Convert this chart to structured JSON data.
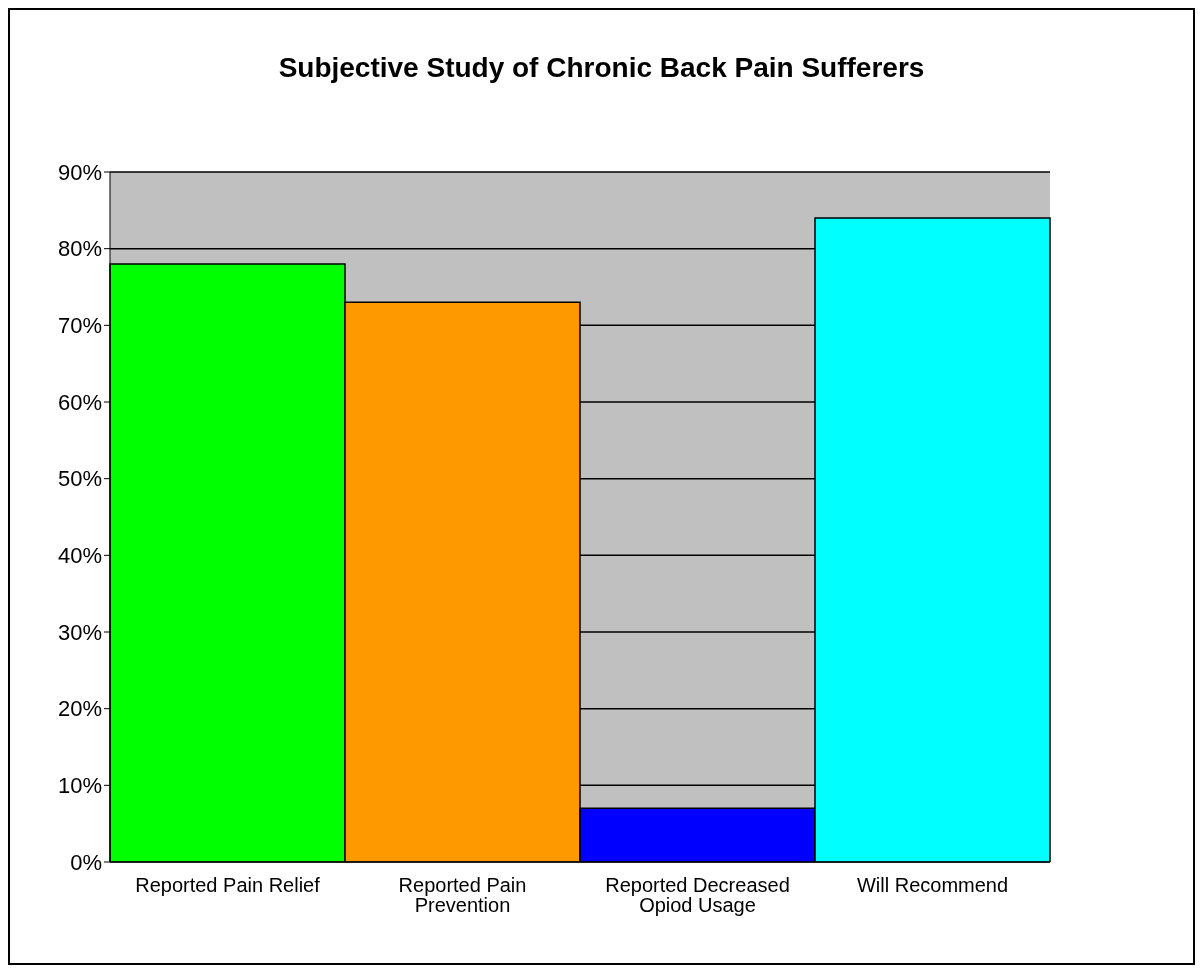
{
  "chart_data": {
    "type": "bar",
    "title": "Subjective Study of Chronic Back Pain Sufferers",
    "categories": [
      "Reported Pain Relief",
      "Reported Pain Prevention",
      "Reported Decreased Opiod Usage",
      "Will Recommend"
    ],
    "values": [
      78,
      73,
      7,
      84
    ],
    "colors": [
      "#00ff00",
      "#ff9900",
      "#0000ff",
      "#00ffff"
    ],
    "ylim": [
      0,
      90
    ],
    "yticks": [
      {
        "value": 0,
        "label": "0%"
      },
      {
        "value": 10,
        "label": "10%"
      },
      {
        "value": 20,
        "label": "20%"
      },
      {
        "value": 30,
        "label": "30%"
      },
      {
        "value": 40,
        "label": "40%"
      },
      {
        "value": 50,
        "label": "50%"
      },
      {
        "value": 60,
        "label": "60%"
      },
      {
        "value": 70,
        "label": "70%"
      },
      {
        "value": 80,
        "label": "80%"
      },
      {
        "value": 90,
        "label": "90%"
      }
    ],
    "grid": "y",
    "legend": false
  }
}
